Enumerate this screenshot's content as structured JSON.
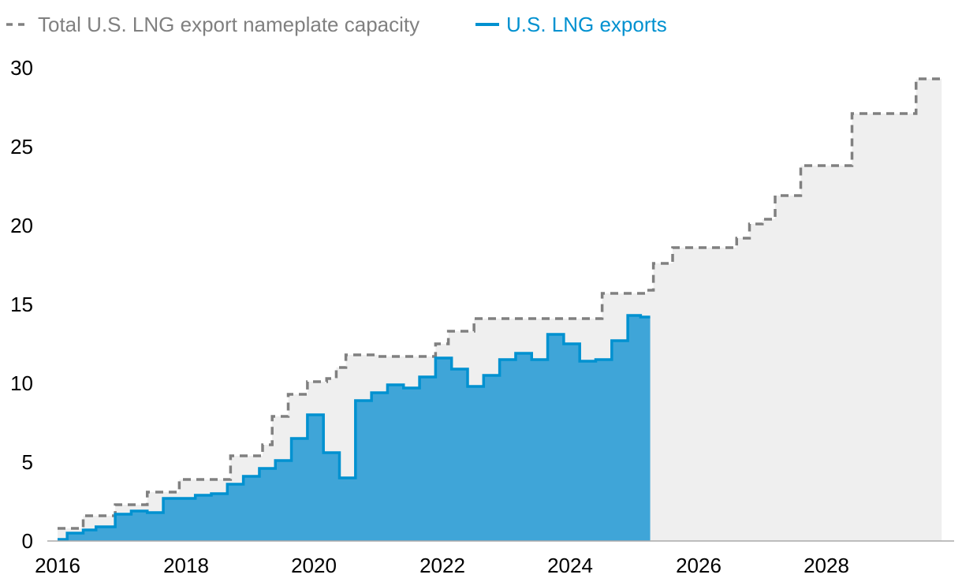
{
  "chart_data": {
    "type": "area",
    "title": "",
    "xlabel": "",
    "ylabel": "",
    "xlim": [
      2016,
      2029.8
    ],
    "ylim": [
      0,
      30
    ],
    "x_ticks": [
      "2016",
      "2018",
      "2020",
      "2022",
      "2024",
      "2026",
      "2028"
    ],
    "y_ticks": [
      "0",
      "5",
      "10",
      "15",
      "20",
      "25",
      "30"
    ],
    "grid": false,
    "legend_position": "top-left",
    "series": [
      {
        "name": "Total U.S. LNG export nameplate capacity",
        "style": "dashed-step",
        "color": "#808080",
        "fill": "#efefef",
        "x": [
          2016.0,
          2016.4,
          2016.9,
          2017.4,
          2017.9,
          2018.7,
          2019.2,
          2019.35,
          2019.6,
          2019.9,
          2020.2,
          2020.35,
          2020.5,
          2021.0,
          2021.9,
          2022.1,
          2022.5,
          2024.5,
          2025.2,
          2025.3,
          2025.6,
          2026.6,
          2026.8,
          2027.0,
          2027.2,
          2027.6,
          2028.4,
          2028.6,
          2029.4,
          2029.8
        ],
        "values": [
          0.8,
          1.6,
          2.3,
          3.1,
          3.9,
          5.4,
          6.1,
          7.9,
          9.3,
          10.1,
          10.3,
          11.0,
          11.8,
          11.7,
          12.5,
          13.3,
          14.1,
          15.7,
          15.9,
          17.6,
          18.6,
          19.2,
          20.1,
          20.4,
          21.9,
          23.8,
          27.1,
          27.1,
          29.3,
          29.3
        ]
      },
      {
        "name": "U.S. LNG exports",
        "style": "solid-step",
        "color": "#0091d0",
        "fill": "#3fa5d8",
        "x": [
          2016.0,
          2016.15,
          2016.4,
          2016.6,
          2016.9,
          2017.15,
          2017.4,
          2017.65,
          2017.9,
          2018.15,
          2018.4,
          2018.65,
          2018.9,
          2019.15,
          2019.4,
          2019.65,
          2019.9,
          2020.15,
          2020.4,
          2020.65,
          2020.9,
          2021.15,
          2021.4,
          2021.65,
          2021.9,
          2022.15,
          2022.4,
          2022.65,
          2022.9,
          2023.15,
          2023.4,
          2023.65,
          2023.9,
          2024.15,
          2024.4,
          2024.65,
          2024.9,
          2025.1,
          2025.25
        ],
        "values": [
          0.1,
          0.5,
          0.7,
          0.9,
          1.7,
          1.9,
          1.8,
          2.7,
          2.7,
          2.9,
          3.0,
          3.6,
          4.1,
          4.6,
          5.1,
          6.5,
          8.0,
          5.6,
          4.0,
          8.9,
          9.4,
          9.9,
          9.7,
          10.4,
          11.6,
          10.9,
          9.8,
          10.5,
          11.5,
          11.9,
          11.5,
          13.1,
          12.5,
          11.4,
          11.5,
          12.7,
          14.3,
          14.2,
          14.2
        ]
      }
    ]
  }
}
